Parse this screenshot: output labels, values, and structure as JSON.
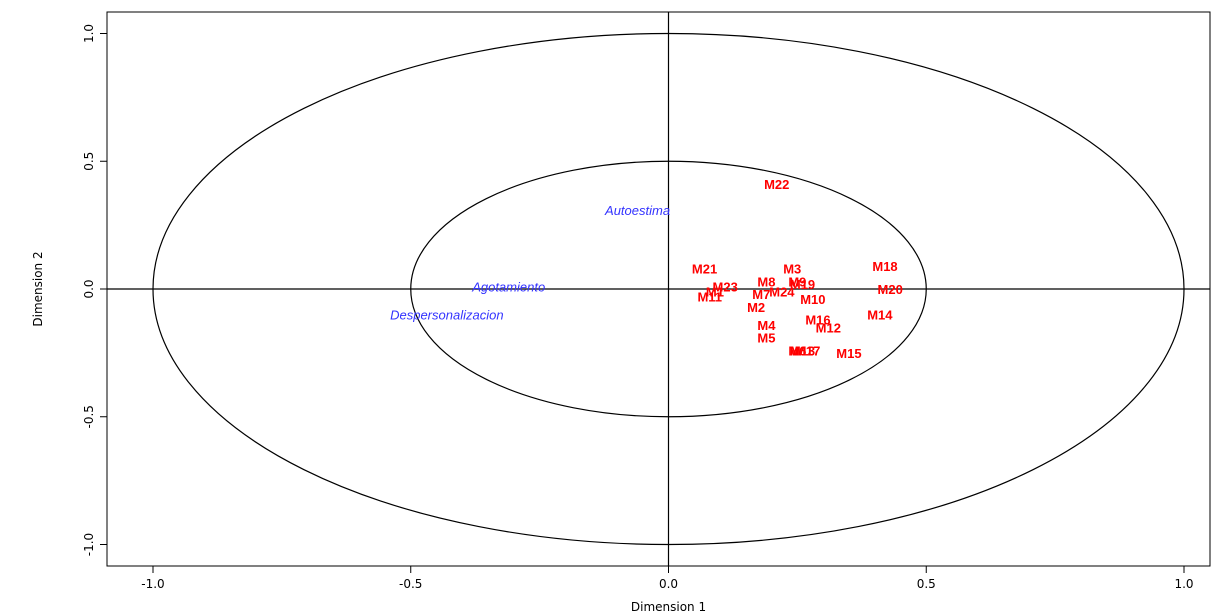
{
  "chart_data": {
    "type": "scatter",
    "title": "",
    "xlabel": "Dimension  1",
    "ylabel": "Dimension 2",
    "xlim": [
      -1.1,
      1.05
    ],
    "ylim": [
      -1.1,
      1.1
    ],
    "xticks": [
      -1.0,
      -0.5,
      0.0,
      0.5,
      1.0
    ],
    "xtick_labels": [
      "-1.0",
      "-0.5",
      "0.0",
      "0.5",
      "1.0"
    ],
    "yticks": [
      1.0,
      0.5,
      0.0,
      -0.5,
      -1.0
    ],
    "ytick_labels": [
      "1.0",
      "0.5",
      "0.0",
      "-0.5",
      "-1.0"
    ],
    "circles": [
      1.0,
      0.5
    ],
    "reference_lines": {
      "x": 0.0,
      "y": 0.0
    },
    "grid": false,
    "series": [
      {
        "color": "#ff0000",
        "points": [
          {
            "label": "M22",
            "x": 0.21,
            "y": 0.41
          },
          {
            "label": "M21",
            "x": 0.07,
            "y": 0.08
          },
          {
            "label": "M3",
            "x": 0.24,
            "y": 0.08
          },
          {
            "label": "M18",
            "x": 0.42,
            "y": 0.09
          },
          {
            "label": "M23",
            "x": 0.11,
            "y": 0.01
          },
          {
            "label": "M8",
            "x": 0.19,
            "y": 0.03
          },
          {
            "label": "M9",
            "x": 0.25,
            "y": 0.03
          },
          {
            "label": "M19",
            "x": 0.26,
            "y": 0.02
          },
          {
            "label": "M1",
            "x": 0.09,
            "y": -0.01
          },
          {
            "label": "M11",
            "x": 0.08,
            "y": -0.03
          },
          {
            "label": "M7",
            "x": 0.18,
            "y": -0.02
          },
          {
            "label": "M24",
            "x": 0.22,
            "y": -0.01
          },
          {
            "label": "M10",
            "x": 0.28,
            "y": -0.04
          },
          {
            "label": "M20",
            "x": 0.43,
            "y": 0.0
          },
          {
            "label": "M2",
            "x": 0.17,
            "y": -0.07
          },
          {
            "label": "M14",
            "x": 0.41,
            "y": -0.1
          },
          {
            "label": "M16",
            "x": 0.29,
            "y": -0.12
          },
          {
            "label": "M12",
            "x": 0.31,
            "y": -0.15
          },
          {
            "label": "M4",
            "x": 0.19,
            "y": -0.14
          },
          {
            "label": "M5",
            "x": 0.19,
            "y": -0.19
          },
          {
            "label": "M6",
            "x": 0.25,
            "y": -0.24
          },
          {
            "label": "M13",
            "x": 0.26,
            "y": -0.24
          },
          {
            "label": "M17",
            "x": 0.27,
            "y": -0.24
          },
          {
            "label": "M15",
            "x": 0.35,
            "y": -0.25
          }
        ]
      },
      {
        "color": "#3333ff",
        "points": [
          {
            "label": "Autoestima",
            "x": -0.06,
            "y": 0.31
          },
          {
            "label": "Agotamiento",
            "x": -0.31,
            "y": 0.01
          },
          {
            "label": "Despersonalizacion",
            "x": -0.43,
            "y": -0.1
          }
        ]
      }
    ]
  }
}
